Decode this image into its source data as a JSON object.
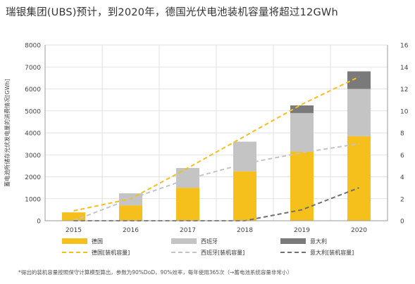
{
  "page": {
    "title": "瑞银集团(UBS)预计，到2020年，德国光伏电池装机容量将超过12GWh",
    "footnote": "*得出的装机容量按照保守计算模型算出，参数为90%DoD，90%效率，每年使用365次（→蓄电池系统容量非常小）"
  },
  "chart_data": {
    "type": "bar",
    "categories": [
      "2015",
      "2016",
      "2017",
      "2018",
      "2019",
      "2020"
    ],
    "ylabel": "蓄电池所储存光伏发电量的消费情况[GWh]",
    "ylim": [
      0,
      8000
    ],
    "y_ticks": [
      "0",
      "1000",
      "2000",
      "3000",
      "4000",
      "5000",
      "6000",
      "7000",
      "8000"
    ],
    "y2lim": [
      0,
      16
    ],
    "y2_ticks": [
      "0",
      "2",
      "4",
      "6",
      "8",
      "10",
      "12",
      "14",
      "16"
    ],
    "grid": true,
    "legend_position": "bottom",
    "stacked": true,
    "bar_series": [
      {
        "name": "德国",
        "color": "#f5bf1c",
        "values": [
          380,
          700,
          1500,
          2250,
          3150,
          3850
        ]
      },
      {
        "name": "西班牙",
        "color": "#c4c4c4",
        "values": [
          0,
          550,
          900,
          1350,
          1750,
          2150
        ]
      },
      {
        "name": "意大利",
        "color": "#7a7a7a",
        "values": [
          0,
          0,
          0,
          0,
          350,
          800
        ]
      }
    ],
    "line_series": [
      {
        "name": "德国[装机容量]",
        "color": "#f5bf1c",
        "axis": "right",
        "values": [
          0.9,
          2.0,
          4.8,
          7.7,
          10.6,
          13.1
        ]
      },
      {
        "name": "西班牙[装机容量]",
        "color": "#c4c4c4",
        "axis": "right",
        "values": [
          0.0,
          2.0,
          3.8,
          5.2,
          6.2,
          7.0
        ]
      },
      {
        "name": "意大利[装机容量]",
        "color": "#707070",
        "axis": "right",
        "values": [
          0.0,
          0.0,
          0.0,
          0.0,
          1.0,
          3.0
        ]
      }
    ]
  }
}
